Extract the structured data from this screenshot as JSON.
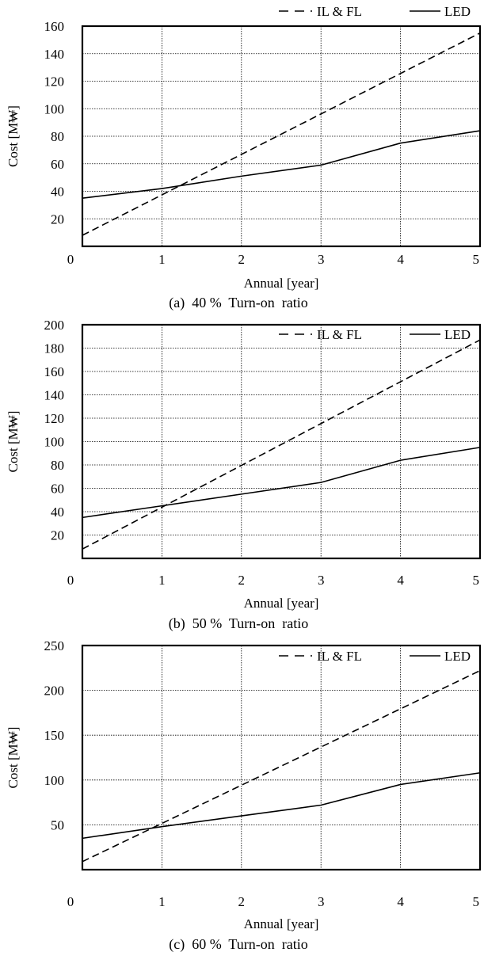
{
  "figure": {
    "legend_labels": [
      "IL & FL",
      "LED"
    ]
  },
  "chart_data": [
    {
      "type": "line",
      "caption": "(a)  40 %  Turn-on  ratio",
      "xlabel": "Annual [year]",
      "ylabel": "Cost [M₩]",
      "xlim": [
        0,
        5
      ],
      "ylim": [
        0,
        160
      ],
      "xticks": [
        0,
        1,
        2,
        3,
        4,
        5
      ],
      "yticks": [
        20,
        40,
        60,
        80,
        100,
        120,
        140,
        160
      ],
      "grid": true,
      "legend_position": "top-right, above plot",
      "series": [
        {
          "name": "IL & FL",
          "style": "dashed",
          "color": "#000000",
          "x": [
            0,
            5
          ],
          "y": [
            8,
            155
          ]
        },
        {
          "name": "LED",
          "style": "solid",
          "color": "#000000",
          "x": [
            0,
            1,
            2,
            3,
            4,
            5
          ],
          "y": [
            35,
            42,
            51,
            59,
            75,
            84
          ]
        }
      ]
    },
    {
      "type": "line",
      "caption": "(b)  50 %  Turn-on  ratio",
      "xlabel": "Annual [year]",
      "ylabel": "Cost [M₩]",
      "xlim": [
        0,
        5
      ],
      "ylim": [
        0,
        200
      ],
      "xticks": [
        0,
        1,
        2,
        3,
        4,
        5
      ],
      "yticks": [
        20,
        40,
        60,
        80,
        100,
        120,
        140,
        160,
        180,
        200
      ],
      "grid": true,
      "legend_position": "top-right, above plot",
      "series": [
        {
          "name": "IL & FL",
          "style": "dashed",
          "color": "#000000",
          "x": [
            0,
            5
          ],
          "y": [
            8,
            187
          ]
        },
        {
          "name": "LED",
          "style": "solid",
          "color": "#000000",
          "x": [
            0,
            1,
            2,
            3,
            4,
            5
          ],
          "y": [
            35,
            45,
            55,
            65,
            84,
            95
          ]
        }
      ]
    },
    {
      "type": "line",
      "caption": "(c)  60 %  Turn-on  ratio",
      "xlabel": "Annual [year]",
      "ylabel": "Cost [M₩]",
      "xlim": [
        0,
        5
      ],
      "ylim": [
        0,
        250
      ],
      "xticks": [
        0,
        1,
        2,
        3,
        4,
        5
      ],
      "yticks": [
        50,
        100,
        150,
        200,
        250
      ],
      "grid": true,
      "legend_position": "top-right, above plot",
      "series": [
        {
          "name": "IL & FL",
          "style": "dashed",
          "color": "#000000",
          "x": [
            0,
            5
          ],
          "y": [
            9,
            222
          ]
        },
        {
          "name": "LED",
          "style": "solid",
          "color": "#000000",
          "x": [
            0,
            1,
            2,
            3,
            4,
            5
          ],
          "y": [
            35,
            48,
            60,
            72,
            95,
            108
          ]
        }
      ]
    }
  ]
}
